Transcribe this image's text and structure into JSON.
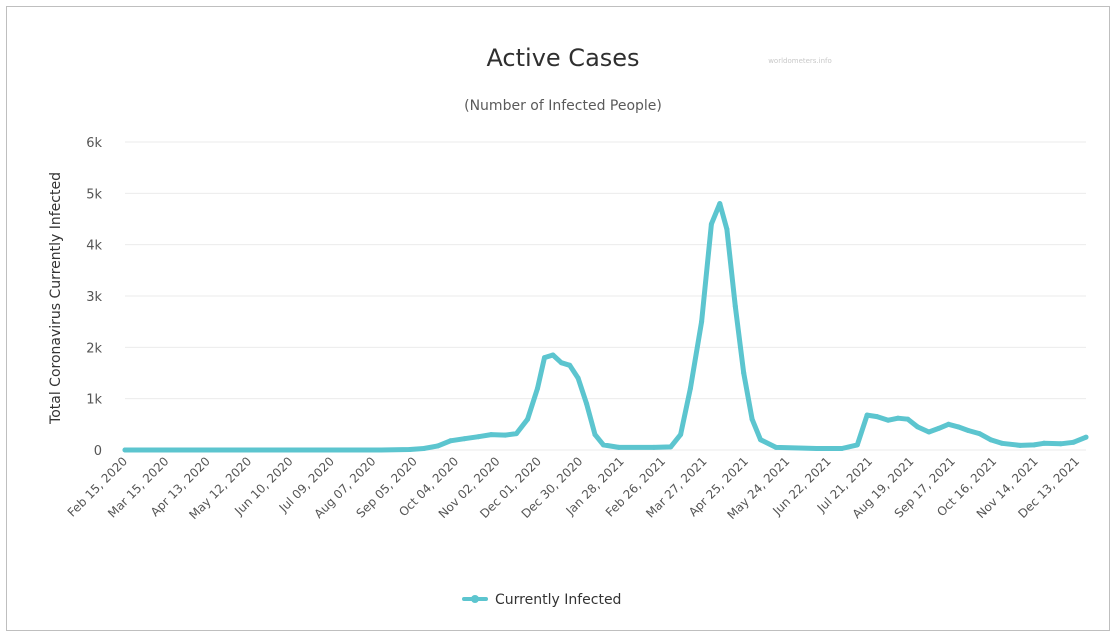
{
  "chart_data": {
    "type": "line",
    "title": "Active Cases",
    "subtitle": "(Number of Infected People)",
    "credit": "worldometers.info",
    "ylabel": "Total Coronavirus Currently Infected",
    "xlabel": "",
    "ylim": [
      0,
      6000
    ],
    "yticks": [
      0,
      1000,
      2000,
      3000,
      4000,
      5000,
      6000
    ],
    "ytick_labels": [
      "0",
      "1k",
      "2k",
      "3k",
      "4k",
      "5k",
      "6k"
    ],
    "grid": true,
    "legend_placement": "bottom-center",
    "color": "#5cc5cf",
    "x_start": "Feb 15, 2020",
    "x_end": "Dec 31, 2021",
    "x_tick_labels": [
      "Feb 15, 2020",
      "Mar 15, 2020",
      "Apr 13, 2020",
      "May 12, 2020",
      "Jun 10, 2020",
      "Jul 09, 2020",
      "Aug 07, 2020",
      "Sep 05, 2020",
      "Oct 04, 2020",
      "Nov 02, 2020",
      "Dec 01, 2020",
      "Dec 30, 2020",
      "Jan 28, 2021",
      "Feb 26, 2021",
      "Mar 27, 2021",
      "Apr 25, 2021",
      "May 24, 2021",
      "Jun 22, 2021",
      "Jul 21, 2021",
      "Aug 19, 2021",
      "Sep 17, 2021",
      "Oct 16, 2021",
      "Nov 14, 2021",
      "Dec 13, 2021"
    ],
    "series": [
      {
        "name": "Currently Infected",
        "points": [
          [
            "2020-02-15",
            0
          ],
          [
            "2020-03-15",
            0
          ],
          [
            "2020-06-10",
            0
          ],
          [
            "2020-08-15",
            0
          ],
          [
            "2020-09-05",
            10
          ],
          [
            "2020-09-15",
            30
          ],
          [
            "2020-09-25",
            80
          ],
          [
            "2020-10-04",
            180
          ],
          [
            "2020-10-14",
            220
          ],
          [
            "2020-10-24",
            260
          ],
          [
            "2020-11-02",
            300
          ],
          [
            "2020-11-12",
            290
          ],
          [
            "2020-11-20",
            320
          ],
          [
            "2020-11-28",
            600
          ],
          [
            "2020-12-05",
            1200
          ],
          [
            "2020-12-10",
            1800
          ],
          [
            "2020-12-16",
            1850
          ],
          [
            "2020-12-22",
            1700
          ],
          [
            "2020-12-28",
            1650
          ],
          [
            "2021-01-03",
            1400
          ],
          [
            "2021-01-09",
            900
          ],
          [
            "2021-01-15",
            300
          ],
          [
            "2021-01-21",
            100
          ],
          [
            "2021-02-01",
            50
          ],
          [
            "2021-02-26",
            50
          ],
          [
            "2021-03-10",
            60
          ],
          [
            "2021-03-17",
            300
          ],
          [
            "2021-03-24",
            1200
          ],
          [
            "2021-04-01",
            2500
          ],
          [
            "2021-04-08",
            4400
          ],
          [
            "2021-04-14",
            4800
          ],
          [
            "2021-04-19",
            4300
          ],
          [
            "2021-04-25",
            2800
          ],
          [
            "2021-05-01",
            1500
          ],
          [
            "2021-05-07",
            600
          ],
          [
            "2021-05-13",
            200
          ],
          [
            "2021-05-24",
            50
          ],
          [
            "2021-06-22",
            30
          ],
          [
            "2021-07-10",
            30
          ],
          [
            "2021-07-21",
            100
          ],
          [
            "2021-07-28",
            680
          ],
          [
            "2021-08-04",
            650
          ],
          [
            "2021-08-12",
            580
          ],
          [
            "2021-08-19",
            620
          ],
          [
            "2021-08-26",
            600
          ],
          [
            "2021-09-02",
            450
          ],
          [
            "2021-09-10",
            350
          ],
          [
            "2021-09-17",
            420
          ],
          [
            "2021-09-24",
            500
          ],
          [
            "2021-10-01",
            450
          ],
          [
            "2021-10-08",
            380
          ],
          [
            "2021-10-16",
            320
          ],
          [
            "2021-10-24",
            200
          ],
          [
            "2021-11-01",
            130
          ],
          [
            "2021-11-14",
            90
          ],
          [
            "2021-11-24",
            100
          ],
          [
            "2021-12-01",
            130
          ],
          [
            "2021-12-13",
            120
          ],
          [
            "2021-12-22",
            150
          ],
          [
            "2021-12-31",
            250
          ]
        ]
      }
    ]
  }
}
